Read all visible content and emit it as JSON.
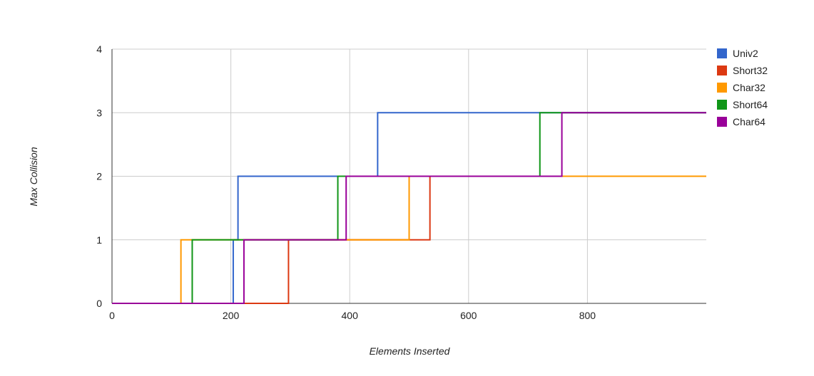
{
  "chart_data": {
    "type": "line",
    "step": true,
    "xlabel": "Elements Inserted",
    "ylabel": "Max Collision",
    "xlim": [
      0,
      1000
    ],
    "ylim": [
      0,
      4
    ],
    "x_ticks": [
      "0",
      "200",
      "400",
      "600",
      "800"
    ],
    "y_ticks": [
      "0",
      "1",
      "2",
      "3",
      "4"
    ],
    "grid": true,
    "legend_position": "right",
    "series": [
      {
        "name": "Univ2",
        "color": "#3366cc",
        "x": [
          0,
          204,
          212,
          447,
          1000
        ],
        "y": [
          0,
          1,
          2,
          3,
          3
        ]
      },
      {
        "name": "Short32",
        "color": "#dc3912",
        "x": [
          0,
          297,
          535,
          1000
        ],
        "y": [
          0,
          1,
          2,
          2
        ]
      },
      {
        "name": "Char32",
        "color": "#ff9900",
        "x": [
          0,
          116,
          500,
          866,
          1000
        ],
        "y": [
          0,
          1,
          2,
          2,
          2
        ]
      },
      {
        "name": "Short64",
        "color": "#109618",
        "x": [
          0,
          135,
          380,
          720,
          1000
        ],
        "y": [
          0,
          1,
          2,
          3,
          3
        ]
      },
      {
        "name": "Char64",
        "color": "#990099",
        "x": [
          0,
          222,
          394,
          757,
          1000
        ],
        "y": [
          0,
          1,
          2,
          3,
          3
        ]
      }
    ],
    "char32_segments": [
      [
        116,
        500,
        1
      ],
      [
        500,
        866,
        2
      ]
    ]
  }
}
